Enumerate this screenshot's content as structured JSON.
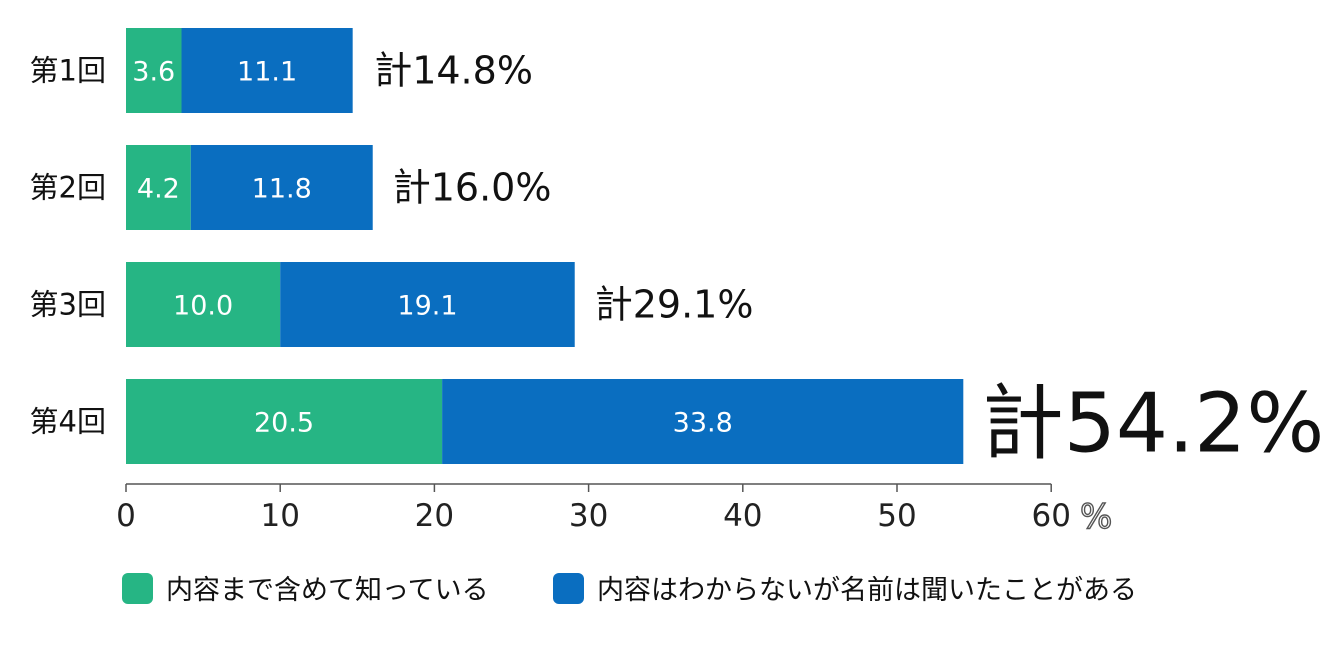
{
  "chart_data": {
    "type": "bar",
    "orientation": "horizontal",
    "stacked": true,
    "categories": [
      "第1回",
      "第2回",
      "第3回",
      "第4回"
    ],
    "series": [
      {
        "name": "内容まで含めて知っている",
        "color": "#26b584",
        "values": [
          3.6,
          4.2,
          10.0,
          20.5
        ],
        "labels": [
          "3.6",
          "4.2",
          "10.0",
          "20.5"
        ]
      },
      {
        "name": "内容はわからないが名前は聞いたことがある",
        "color": "#0a6ec0",
        "values": [
          11.1,
          11.8,
          19.1,
          33.8
        ],
        "labels": [
          "11.1",
          "11.8",
          "19.1",
          "33.8"
        ]
      }
    ],
    "totals": [
      "計14.8%",
      "計16.0%",
      "計29.1%",
      "計54.2%"
    ],
    "total_values": [
      14.8,
      16.0,
      29.1,
      54.2
    ],
    "emphasized_total_index": 3,
    "xlim": [
      0,
      60
    ],
    "xticks": [
      "0",
      "10",
      "20",
      "30",
      "40",
      "50",
      "60"
    ],
    "unit": "%",
    "grid": false,
    "legend_position": "bottom"
  }
}
